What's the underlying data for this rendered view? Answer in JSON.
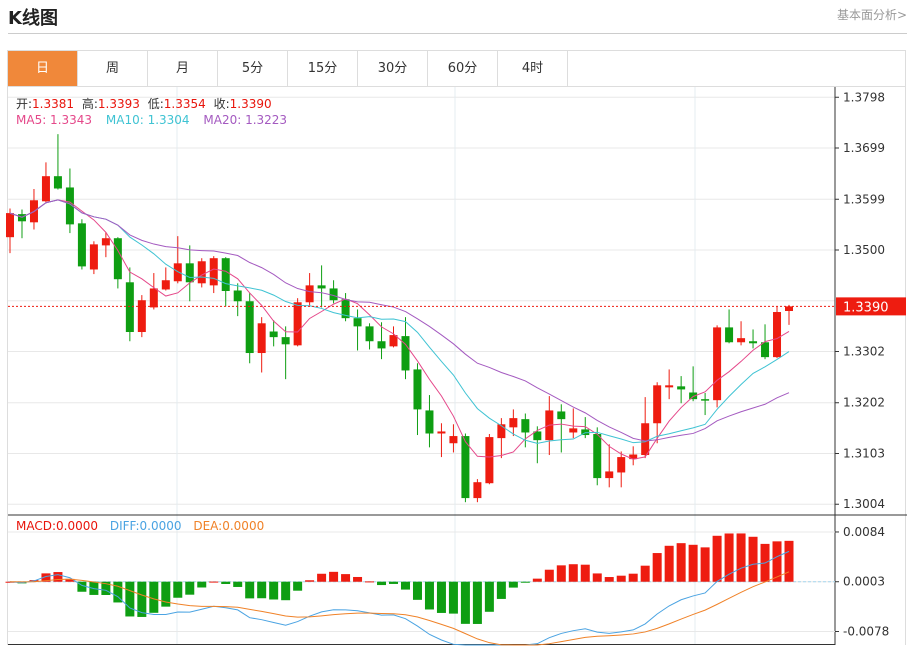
{
  "header": {
    "title": "K线图",
    "link": "基本面分析>"
  },
  "tabs": [
    {
      "label": "日",
      "active": true
    },
    {
      "label": "周"
    },
    {
      "label": "月"
    },
    {
      "label": "5分"
    },
    {
      "label": "15分"
    },
    {
      "label": "30分"
    },
    {
      "label": "60分"
    },
    {
      "label": "4时"
    }
  ],
  "legend": {
    "open_label": "开:",
    "open": "1.3381",
    "high_label": "高:",
    "high": "1.3393",
    "low_label": "低:",
    "low": "1.3354",
    "close_label": "收:",
    "close": "1.3390",
    "ma5": "MA5: 1.3343",
    "ma10": "MA10: 1.3304",
    "ma20": "MA20: 1.3223"
  },
  "macd_legend": {
    "macd": "MACD:0.0000",
    "diff": "DIFF:0.0000",
    "dea": "DEA:0.0000"
  },
  "colors": {
    "up": "#ee1c10",
    "down": "#0e9e12",
    "ma5": "#e5488a",
    "ma10": "#3fc3d3",
    "ma20": "#a45ac0",
    "diff": "#4aa3e2",
    "dea": "#f08228",
    "accent": "#f0883a"
  },
  "chart_data": {
    "type": "candlestick",
    "current_price": "1.3390",
    "ylim": [
      1.2983,
      1.3818
    ],
    "yticks": [
      "1.3798",
      "1.3699",
      "1.3599",
      "1.3500",
      "1.3302",
      "1.3202",
      "1.3103",
      "1.3004"
    ],
    "grid_values": [
      1.3798,
      1.3699,
      1.3599,
      1.35,
      1.3401,
      1.3302,
      1.3202,
      1.3103,
      1.3004
    ],
    "ohlc": [
      [
        1.3525,
        1.3581,
        1.3494,
        1.3572
      ],
      [
        1.357,
        1.3579,
        1.3523,
        1.3556
      ],
      [
        1.3554,
        1.3619,
        1.354,
        1.3597
      ],
      [
        1.3595,
        1.3671,
        1.3591,
        1.3644
      ],
      [
        1.3644,
        1.3726,
        1.3618,
        1.362
      ],
      [
        1.3622,
        1.3659,
        1.3533,
        1.355
      ],
      [
        1.3552,
        1.356,
        1.3462,
        1.3468
      ],
      [
        1.3462,
        1.3517,
        1.3453,
        1.3511
      ],
      [
        1.3509,
        1.3535,
        1.3486,
        1.3523
      ],
      [
        1.3523,
        1.3525,
        1.3425,
        1.3443
      ],
      [
        1.3437,
        1.3466,
        1.3322,
        1.334
      ],
      [
        1.334,
        1.3412,
        1.333,
        1.3402
      ],
      [
        1.3388,
        1.3455,
        1.3384,
        1.3425
      ],
      [
        1.3423,
        1.3466,
        1.3421,
        1.3441
      ],
      [
        1.3439,
        1.3527,
        1.3435,
        1.3474
      ],
      [
        1.3474,
        1.3509,
        1.34,
        1.3437
      ],
      [
        1.3435,
        1.3484,
        1.3427,
        1.3478
      ],
      [
        1.3431,
        1.3488,
        1.3416,
        1.3484
      ],
      [
        1.3484,
        1.3486,
        1.339,
        1.342
      ],
      [
        1.3421,
        1.3435,
        1.3371,
        1.34
      ],
      [
        1.34,
        1.3416,
        1.3279,
        1.3299
      ],
      [
        1.3299,
        1.3369,
        1.3261,
        1.3357
      ],
      [
        1.3341,
        1.3363,
        1.3312,
        1.333
      ],
      [
        1.333,
        1.3351,
        1.3248,
        1.3316
      ],
      [
        1.3314,
        1.3406,
        1.3312,
        1.3398
      ],
      [
        1.3398,
        1.3455,
        1.3392,
        1.3431
      ],
      [
        1.3431,
        1.347,
        1.3388,
        1.3425
      ],
      [
        1.3425,
        1.3441,
        1.3396,
        1.3402
      ],
      [
        1.3404,
        1.3416,
        1.3361,
        1.3367
      ],
      [
        1.3367,
        1.3384,
        1.3304,
        1.3351
      ],
      [
        1.3351,
        1.3357,
        1.3306,
        1.3322
      ],
      [
        1.3322,
        1.3359,
        1.3287,
        1.3308
      ],
      [
        1.3312,
        1.3351,
        1.331,
        1.3334
      ],
      [
        1.3332,
        1.3369,
        1.3248,
        1.3265
      ],
      [
        1.3267,
        1.3279,
        1.3139,
        1.3189
      ],
      [
        1.3187,
        1.3217,
        1.3115,
        1.3142
      ],
      [
        1.3142,
        1.3162,
        1.3096,
        1.3146
      ],
      [
        1.3123,
        1.316,
        1.3105,
        1.3137
      ],
      [
        1.3137,
        1.3142,
        1.3008,
        1.3016
      ],
      [
        1.3016,
        1.3053,
        1.3008,
        1.3047
      ],
      [
        1.3045,
        1.3141,
        1.3043,
        1.3135
      ],
      [
        1.3133,
        1.3172,
        1.3094,
        1.316
      ],
      [
        1.3154,
        1.3189,
        1.3137,
        1.3172
      ],
      [
        1.317,
        1.3181,
        1.3115,
        1.3144
      ],
      [
        1.3146,
        1.3156,
        1.3084,
        1.3129
      ],
      [
        1.3129,
        1.3215,
        1.31,
        1.3187
      ],
      [
        1.3185,
        1.3199,
        1.3105,
        1.317
      ],
      [
        1.3144,
        1.3191,
        1.3133,
        1.3152
      ],
      [
        1.315,
        1.3174,
        1.3133,
        1.3139
      ],
      [
        1.3141,
        1.3154,
        1.3041,
        1.3055
      ],
      [
        1.3055,
        1.3121,
        1.3037,
        1.3068
      ],
      [
        1.3066,
        1.3107,
        1.3037,
        1.3096
      ],
      [
        1.3092,
        1.3117,
        1.308,
        1.3101
      ],
      [
        1.31,
        1.3213,
        1.3094,
        1.3162
      ],
      [
        1.3162,
        1.3242,
        1.3123,
        1.3236
      ],
      [
        1.3232,
        1.3267,
        1.3209,
        1.3236
      ],
      [
        1.3234,
        1.3254,
        1.3201,
        1.3228
      ],
      [
        1.3222,
        1.3273,
        1.3205,
        1.3209
      ],
      [
        1.3209,
        1.3221,
        1.3178,
        1.3207
      ],
      [
        1.3207,
        1.3353,
        1.3193,
        1.3349
      ],
      [
        1.3349,
        1.3384,
        1.3318,
        1.332
      ],
      [
        1.332,
        1.3361,
        1.3314,
        1.3328
      ],
      [
        1.3322,
        1.3345,
        1.3308,
        1.3318
      ],
      [
        1.332,
        1.3355,
        1.3287,
        1.3291
      ],
      [
        1.3291,
        1.339,
        1.3289,
        1.3379
      ],
      [
        1.3381,
        1.3393,
        1.3354,
        1.339
      ]
    ],
    "indicators": [
      "MA5",
      "MA10",
      "MA20"
    ],
    "macd": {
      "ylim": [
        -0.01,
        0.011
      ],
      "yticks": [
        "0.0084",
        "0.0003",
        "-0.0078"
      ],
      "params": [
        12,
        26,
        9
      ]
    }
  }
}
